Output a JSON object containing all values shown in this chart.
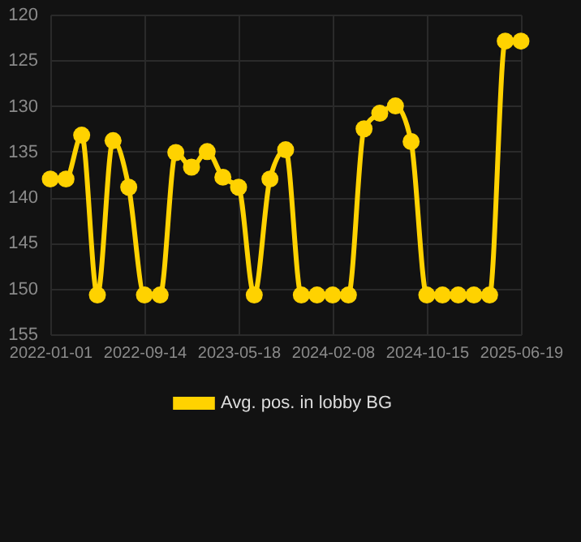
{
  "chart_data": {
    "type": "line",
    "categories": [
      "2022-01-01",
      null,
      null,
      null,
      null,
      null,
      "2022-09-14",
      null,
      null,
      null,
      null,
      null,
      "2023-05-18",
      null,
      null,
      null,
      null,
      null,
      "2024-02-08",
      null,
      null,
      null,
      null,
      null,
      "2024-10-15",
      null,
      null,
      null,
      null,
      null,
      "2025-06-19"
    ],
    "series": [
      {
        "name": "Avg. pos. in lobby BG",
        "color": "#ffd200",
        "values": [
          138,
          138,
          133.2,
          150.7,
          133.8,
          138.9,
          150.7,
          150.7,
          135.1,
          136.7,
          135,
          137.8,
          138.9,
          150.7,
          138,
          134.8,
          150.7,
          150.7,
          150.7,
          150.7,
          132.5,
          130.8,
          130,
          133.9,
          150.7,
          150.7,
          150.7,
          150.7,
          150.7,
          122.9,
          122.9
        ]
      }
    ],
    "ylim": [
      155,
      120
    ],
    "yticks": [
      120,
      125,
      130,
      135,
      140,
      145,
      150,
      155
    ],
    "grid": true,
    "legend": "bottom",
    "marker": "circle",
    "line_style": "solid"
  }
}
